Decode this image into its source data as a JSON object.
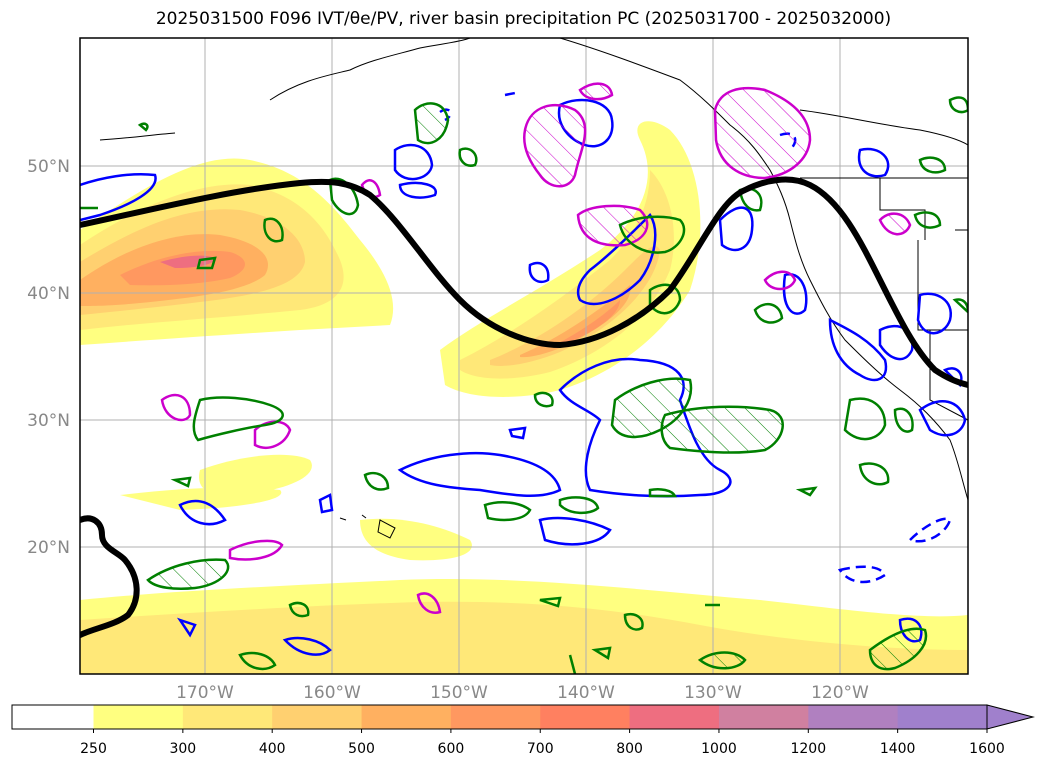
{
  "title": "2025031500 F096 IVT/θe/PV, river basin precipitation PC (2025031700 - 2025032000)",
  "map": {
    "lat_ticks": [
      "50°N",
      "40°N",
      "30°N",
      "20°N"
    ],
    "lon_ticks": [
      "170°W",
      "160°W",
      "150°W",
      "140°W",
      "130°W",
      "120°W"
    ],
    "fill_colors": [
      "#ffffff",
      "#ffff80",
      "#ffe878",
      "#ffd070",
      "#ffb060",
      "#ff9860",
      "#ff8060",
      "#ee6e80",
      "#d080a0",
      "#b080c0",
      "#a080cc"
    ],
    "contour_colors": {
      "theta_e": "#0000ff",
      "pv": "#cc00cc",
      "precip": "#008000",
      "jet": "#000000"
    }
  },
  "colorbar": {
    "labels": [
      "250",
      "300",
      "400",
      "500",
      "600",
      "700",
      "800",
      "1000",
      "1200",
      "1400",
      "1600"
    ]
  }
}
